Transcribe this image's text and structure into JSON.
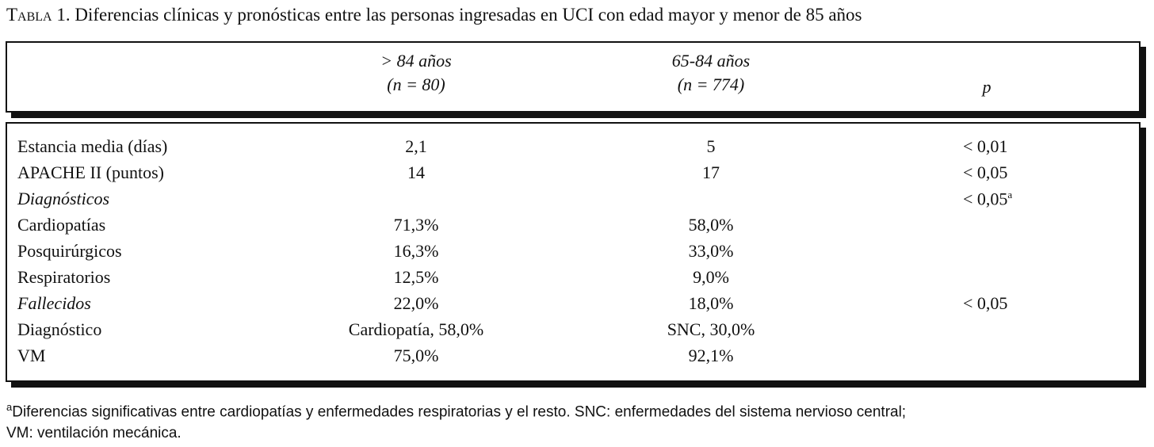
{
  "header": {
    "label": "Tabla 1.",
    "title": "Diferencias clínicas y pronósticas entre las personas ingresadas en UCI con edad mayor y menor de 85 años"
  },
  "table": {
    "columns": [
      {
        "line1": "> 84 años",
        "line2": "(n = 80)"
      },
      {
        "line1": "65-84 años",
        "line2": "(n = 774)"
      },
      {
        "line1": "p"
      }
    ],
    "rows": [
      {
        "label": "Estancia media (días)",
        "cells": [
          "2,1",
          "5",
          "< 0,01"
        ]
      },
      {
        "label": "APACHE II (puntos)",
        "cells": [
          "14",
          "17",
          "< 0,05"
        ]
      },
      {
        "label": "Diagnósticos",
        "italic": true,
        "cells": [
          null,
          null,
          "< 0,05"
        ],
        "note": "a"
      },
      {
        "label": "Cardiopatías",
        "cells": [
          "71,3%",
          "58,0%",
          null
        ]
      },
      {
        "label": "Posquirúrgicos",
        "cells": [
          "16,3%",
          "33,0%",
          null
        ]
      },
      {
        "label": "Respiratorios",
        "cells": [
          "12,5%",
          "9,0%",
          null
        ]
      },
      {
        "label": "Fallecidos",
        "italic": true,
        "cells": [
          "22,0%",
          "18,0%",
          "< 0,05"
        ]
      },
      {
        "label": "Diagnóstico",
        "cells": [
          "Cardiopatía, 58,0%",
          "SNC, 30,0%",
          null
        ]
      },
      {
        "label": "VM",
        "cells": [
          "75,0%",
          "92,1%",
          null
        ]
      }
    ]
  },
  "footnote": {
    "mark": "a",
    "line1": "Diferencias significativas entre cardiopatías y enfermedades respiratorias y el resto. SNC: enfermedades del sistema nervioso central;",
    "line2": "VM: ventilación mecánica."
  }
}
